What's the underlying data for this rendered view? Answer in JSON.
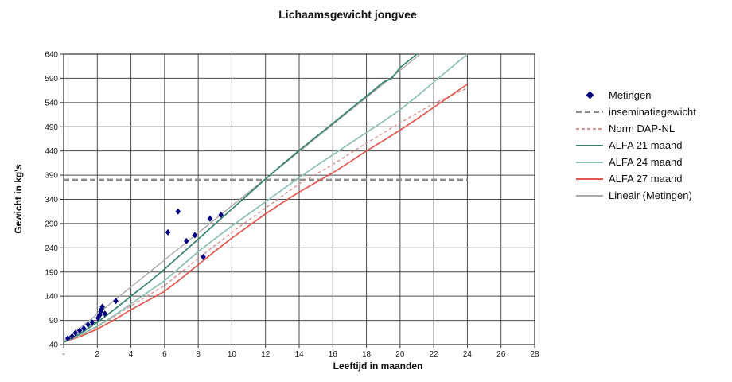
{
  "chart_data": {
    "type": "line",
    "title": "Lichaamsgewicht jongvee",
    "xlabel": "Leeftijd in maanden",
    "ylabel": "Gewicht in kg's",
    "xlim": [
      0,
      28
    ],
    "ylim": [
      40,
      640
    ],
    "grid": true,
    "legend_position": "right",
    "x_ticks": [
      [
        0,
        "-"
      ],
      [
        2,
        "2"
      ],
      [
        4,
        "4"
      ],
      [
        6,
        "6"
      ],
      [
        8,
        "8"
      ],
      [
        10,
        "10"
      ],
      [
        12,
        "12"
      ],
      [
        14,
        "14"
      ],
      [
        16,
        "16"
      ],
      [
        18,
        "18"
      ],
      [
        20,
        "20"
      ],
      [
        22,
        "22"
      ],
      [
        24,
        "24"
      ],
      [
        26,
        "26"
      ],
      [
        28,
        "28"
      ]
    ],
    "y_ticks": [
      40,
      90,
      140,
      190,
      240,
      290,
      340,
      390,
      440,
      490,
      540,
      590,
      640
    ],
    "scatter": {
      "name": "Metingen",
      "color": "#000080",
      "points": [
        [
          0.25,
          53
        ],
        [
          0.5,
          57
        ],
        [
          0.7,
          64
        ],
        [
          0.95,
          69
        ],
        [
          1.2,
          73
        ],
        [
          1.45,
          81
        ],
        [
          1.7,
          86
        ],
        [
          2.05,
          95
        ],
        [
          2.15,
          101
        ],
        [
          2.2,
          108
        ],
        [
          2.25,
          113
        ],
        [
          2.3,
          118
        ],
        [
          2.45,
          104
        ],
        [
          3.1,
          130
        ],
        [
          6.2,
          272
        ],
        [
          6.8,
          315
        ],
        [
          7.3,
          254
        ],
        [
          7.8,
          266
        ],
        [
          8.3,
          221
        ],
        [
          8.7,
          300
        ],
        [
          9.35,
          308
        ]
      ]
    },
    "series": [
      {
        "name": "inseminatiegewicht",
        "color": "#8c8c8c",
        "width": 3,
        "dash": "7 4",
        "points": [
          [
            0,
            380
          ],
          [
            24,
            380
          ]
        ]
      },
      {
        "name": "Lineair (Metingen)",
        "color": "#a9a9a9",
        "width": 1.4,
        "dash": null,
        "points": [
          [
            0,
            47
          ],
          [
            21.2,
            640
          ]
        ]
      },
      {
        "name": "Norm DAP-NL",
        "color": "#df8f8f",
        "width": 1.4,
        "dash": "4 3",
        "points": [
          [
            0,
            45
          ],
          [
            2,
            76
          ],
          [
            4,
            120
          ],
          [
            6,
            162
          ],
          [
            8,
            218
          ],
          [
            10,
            272
          ],
          [
            12,
            322
          ],
          [
            14,
            372
          ],
          [
            16,
            412
          ],
          [
            18,
            456
          ],
          [
            20,
            498
          ],
          [
            22,
            538
          ],
          [
            24,
            570
          ]
        ]
      },
      {
        "name": "ALFA 27 maand",
        "color": "#e2574f",
        "width": 1.7,
        "dash": null,
        "points": [
          [
            0,
            45
          ],
          [
            1,
            57
          ],
          [
            2,
            72
          ],
          [
            3,
            91
          ],
          [
            4,
            112
          ],
          [
            5,
            131
          ],
          [
            6,
            150
          ],
          [
            7,
            177
          ],
          [
            8,
            205
          ],
          [
            9,
            233
          ],
          [
            10,
            260
          ],
          [
            11,
            285
          ],
          [
            12,
            310
          ],
          [
            13,
            333
          ],
          [
            14,
            355
          ],
          [
            15,
            375
          ],
          [
            16,
            395
          ],
          [
            17,
            417
          ],
          [
            18,
            440
          ],
          [
            19,
            461
          ],
          [
            20,
            483
          ],
          [
            21,
            506
          ],
          [
            22,
            530
          ],
          [
            23,
            554
          ],
          [
            24,
            578
          ]
        ]
      },
      {
        "name": "ALFA 24 maand",
        "color": "#8cc0b2",
        "width": 1.7,
        "dash": null,
        "points": [
          [
            0,
            45
          ],
          [
            1,
            60
          ],
          [
            2,
            78
          ],
          [
            3,
            100
          ],
          [
            4,
            124
          ],
          [
            5,
            148
          ],
          [
            6,
            172
          ],
          [
            7,
            202
          ],
          [
            8,
            232
          ],
          [
            9,
            259
          ],
          [
            10,
            285
          ],
          [
            11,
            310
          ],
          [
            12,
            335
          ],
          [
            13,
            360
          ],
          [
            14,
            385
          ],
          [
            15,
            409
          ],
          [
            16,
            432
          ],
          [
            17,
            455
          ],
          [
            18,
            478
          ],
          [
            19,
            501
          ],
          [
            20,
            525
          ],
          [
            21,
            553
          ],
          [
            22,
            582
          ],
          [
            23,
            611
          ],
          [
            24,
            640
          ]
        ]
      },
      {
        "name": "ALFA 21 maand",
        "color": "#35836b",
        "width": 1.7,
        "dash": null,
        "points": [
          [
            0,
            45
          ],
          [
            1,
            63
          ],
          [
            2,
            86
          ],
          [
            3,
            112
          ],
          [
            4,
            140
          ],
          [
            5,
            167
          ],
          [
            6,
            196
          ],
          [
            7,
            227
          ],
          [
            8,
            258
          ],
          [
            9,
            289
          ],
          [
            10,
            320
          ],
          [
            11,
            351
          ],
          [
            12,
            382
          ],
          [
            13,
            412
          ],
          [
            14,
            441
          ],
          [
            15,
            469
          ],
          [
            16,
            497
          ],
          [
            17,
            525
          ],
          [
            18,
            553
          ],
          [
            19,
            582
          ],
          [
            19.5,
            590
          ],
          [
            20,
            612
          ],
          [
            21,
            640
          ]
        ]
      }
    ],
    "legend": [
      {
        "label": "Metingen",
        "marker": "diamond",
        "color": "#000080"
      },
      {
        "label": "inseminatiegewicht",
        "marker": "dash",
        "color": "#8c8c8c",
        "thickness": 3
      },
      {
        "label": "Norm DAP-NL",
        "marker": "dash",
        "color": "#df8f8f",
        "thickness": 2
      },
      {
        "label": "ALFA 21 maand",
        "marker": "line",
        "color": "#35836b",
        "thickness": 2
      },
      {
        "label": "ALFA 24 maand",
        "marker": "line",
        "color": "#8cc0b2",
        "thickness": 2
      },
      {
        "label": "ALFA 27 maand",
        "marker": "line",
        "color": "#e2574f",
        "thickness": 2
      },
      {
        "label": "Lineair (Metingen)",
        "marker": "line",
        "color": "#a9a9a9",
        "thickness": 2
      }
    ]
  }
}
